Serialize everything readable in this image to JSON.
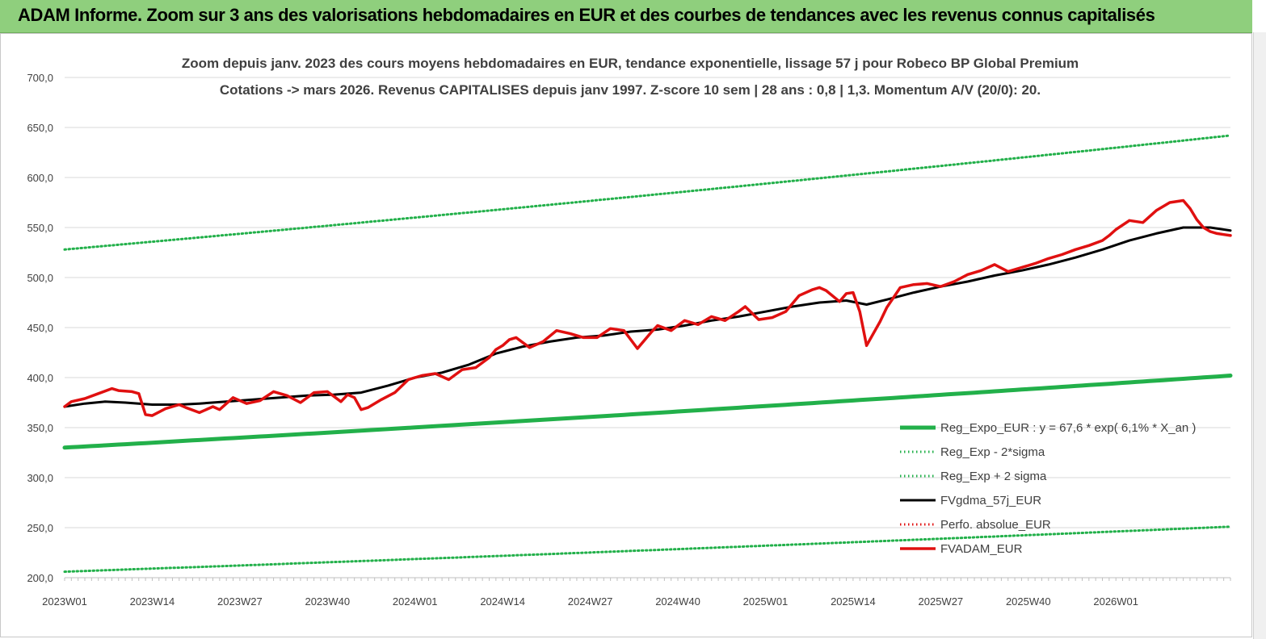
{
  "banner": {
    "title": "ADAM Informe. Zoom sur 3 ans des valorisations hebdomadaires en EUR et des courbes de tendances avec les revenus connus capitalisés"
  },
  "chart_data": {
    "type": "line",
    "title_line1": "Zoom depuis janv. 2023 des cours moyens hebdomadaires en EUR, tendance exponentielle, lissage 57 j pour Robeco BP Global Premium",
    "title_line2": "Cotations -> mars 2026. Revenus CAPITALISES depuis janv 1997. Z-score 10 sem | 28 ans : 0,8 | 1,3. Momentum A/V (20/0): 20.",
    "ylim": [
      200,
      700
    ],
    "yticks": [
      200,
      250,
      300,
      350,
      400,
      450,
      500,
      550,
      600,
      650,
      700
    ],
    "ytick_labels": [
      "200,0",
      "250,0",
      "300,0",
      "350,0",
      "400,0",
      "450,0",
      "500,0",
      "550,0",
      "600,0",
      "650,0",
      "700,0"
    ],
    "x_tick_labels": [
      "2023W01",
      "2023W14",
      "2023W27",
      "2023W40",
      "2024W01",
      "2024W14",
      "2024W27",
      "2024W40",
      "2025W01",
      "2025W14",
      "2025W27",
      "2025W40",
      "2026W01"
    ],
    "x_tick_weeks": [
      0,
      13,
      26,
      39,
      52,
      65,
      78,
      91,
      104,
      117,
      130,
      143,
      156
    ],
    "x_range_weeks": [
      0,
      173
    ],
    "grid": "horizontal",
    "legend_placement": "bottom-right",
    "legend": [
      {
        "label": "Reg_Expo_EUR : y = 67,6 * exp( 6,1% *  X_an )",
        "color": "#22b04a",
        "style": "solid-thick"
      },
      {
        "label": "Reg_Exp - 2*sigma",
        "color": "#22b04a",
        "style": "dotted"
      },
      {
        "label": "Reg_Exp + 2 sigma",
        "color": "#22b04a",
        "style": "dotted"
      },
      {
        "label": "FVgdma_57j_EUR",
        "color": "#000000",
        "style": "solid"
      },
      {
        "label": "Perfo. absolue_EUR",
        "color": "#e01010",
        "style": "dotted"
      },
      {
        "label": "FVADAM_EUR",
        "color": "#e01010",
        "style": "solid-thick"
      }
    ],
    "series": [
      {
        "name": "Reg_Expo_EUR : y = 67,6 * exp( 6,1% *  X_an )",
        "color": "#22b04a",
        "style": "solid-thick",
        "x": [
          0,
          173
        ],
        "y": [
          330,
          402
        ],
        "kind": "exp"
      },
      {
        "name": "Reg_Exp - 2*sigma",
        "color": "#22b04a",
        "style": "dotted",
        "x": [
          0,
          173
        ],
        "y": [
          206,
          251
        ],
        "kind": "exp"
      },
      {
        "name": "Reg_Exp + 2 sigma",
        "color": "#22b04a",
        "style": "dotted",
        "x": [
          0,
          173
        ],
        "y": [
          528,
          642
        ],
        "kind": "exp"
      },
      {
        "name": "FVgdma_57j_EUR",
        "color": "#000000",
        "style": "solid",
        "x": [
          0,
          3,
          6,
          9,
          13,
          17,
          20,
          24,
          28,
          32,
          36,
          40,
          44,
          48,
          52,
          56,
          60,
          64,
          68,
          72,
          76,
          80,
          84,
          88,
          92,
          96,
          100,
          104,
          108,
          112,
          116,
          119,
          122,
          126,
          130,
          134,
          138,
          142,
          146,
          150,
          154,
          158,
          162,
          166,
          170,
          173
        ],
        "y": [
          371,
          374,
          376,
          375,
          373,
          373,
          374,
          376,
          378,
          380,
          382,
          383,
          385,
          392,
          400,
          405,
          413,
          424,
          431,
          436,
          440,
          442,
          446,
          448,
          452,
          457,
          461,
          466,
          471,
          475,
          477,
          473,
          478,
          485,
          491,
          496,
          502,
          507,
          513,
          520,
          528,
          537,
          544,
          550,
          550,
          547
        ]
      },
      {
        "name": "FVADAM_EUR",
        "color": "#e01010",
        "style": "solid-thick",
        "x": [
          0,
          1,
          3,
          5,
          7,
          8,
          10,
          11,
          12,
          13,
          15,
          17,
          18,
          20,
          22,
          23,
          25,
          27,
          29,
          31,
          33,
          35,
          36,
          37,
          39,
          41,
          42,
          43,
          44,
          45,
          47,
          49,
          51,
          53,
          55,
          57,
          59,
          61,
          63,
          64,
          65,
          66,
          67,
          69,
          71,
          73,
          75,
          77,
          79,
          81,
          82,
          83,
          85,
          87,
          88,
          90,
          92,
          94,
          96,
          98,
          100,
          101,
          103,
          105,
          107,
          109,
          111,
          112,
          113,
          115,
          116,
          117,
          118,
          119,
          121,
          122,
          124,
          126,
          128,
          130,
          132,
          134,
          136,
          138,
          140,
          142,
          144,
          146,
          148,
          150,
          152,
          154,
          155,
          156,
          158,
          160,
          162,
          164,
          166,
          167,
          168,
          169,
          170,
          171,
          172,
          173
        ],
        "y": [
          371,
          376,
          379,
          384,
          389,
          387,
          386,
          384,
          363,
          362,
          369,
          373,
          370,
          365,
          371,
          368,
          380,
          374,
          377,
          386,
          382,
          375,
          380,
          385,
          386,
          376,
          383,
          380,
          368,
          370,
          378,
          385,
          398,
          402,
          404,
          398,
          408,
          410,
          420,
          428,
          432,
          438,
          440,
          430,
          436,
          447,
          444,
          440,
          440,
          449,
          448,
          447,
          429,
          445,
          452,
          447,
          457,
          453,
          461,
          457,
          466,
          471,
          458,
          460,
          466,
          482,
          488,
          490,
          487,
          476,
          484,
          485,
          466,
          432,
          456,
          470,
          490,
          493,
          494,
          491,
          496,
          503,
          507,
          513,
          506,
          510,
          514,
          519,
          523,
          528,
          532,
          537,
          542,
          548,
          557,
          555,
          567,
          575,
          577,
          569,
          558,
          550,
          546,
          544,
          543,
          542
        ]
      }
    ]
  }
}
